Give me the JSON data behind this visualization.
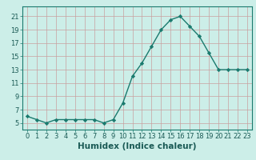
{
  "x": [
    0,
    1,
    2,
    3,
    4,
    5,
    6,
    7,
    8,
    9,
    10,
    11,
    12,
    13,
    14,
    15,
    16,
    17,
    18,
    19,
    20,
    21,
    22,
    23
  ],
  "y": [
    6,
    5.5,
    5,
    5.5,
    5.5,
    5.5,
    5.5,
    5.5,
    5,
    5.5,
    8,
    12,
    14,
    16.5,
    19,
    20.5,
    21,
    19.5,
    18,
    15.5,
    13,
    13,
    13,
    13
  ],
  "line_color": "#1a7a6e",
  "marker": "D",
  "marker_size": 2.2,
  "bg_color": "#cceee8",
  "grid_color_h": "#c8a0a0",
  "grid_color_v": "#c8a0a0",
  "xlabel": "Humidex (Indice chaleur)",
  "xlabel_fontsize": 7.5,
  "yticks": [
    5,
    7,
    9,
    11,
    13,
    15,
    17,
    19,
    21
  ],
  "xtick_labels": [
    "0",
    "1",
    "2",
    "3",
    "4",
    "5",
    "6",
    "7",
    "8",
    "9",
    "10",
    "11",
    "12",
    "13",
    "14",
    "15",
    "16",
    "17",
    "18",
    "19",
    "20",
    "21",
    "22",
    "23"
  ],
  "ylim": [
    4.0,
    22.5
  ],
  "xlim": [
    -0.5,
    23.5
  ],
  "tick_fontsize": 6.0,
  "linewidth": 1.0
}
